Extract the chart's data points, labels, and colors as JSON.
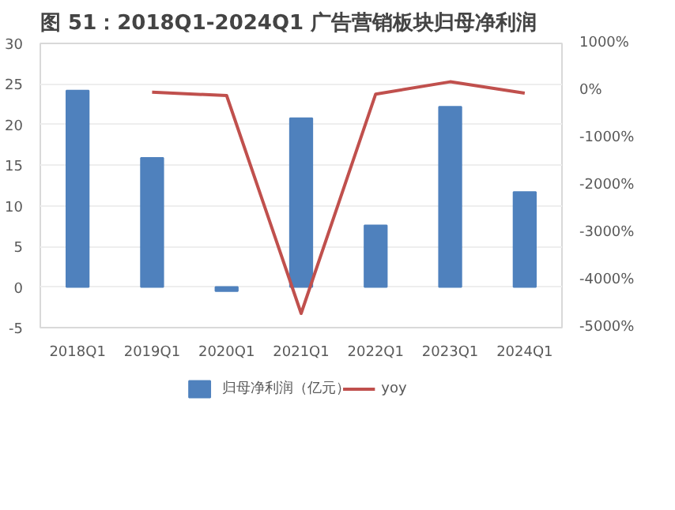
{
  "chart_data": {
    "type": "bar",
    "title": "图 51：2018Q1-2024Q1 广告营销板块归母净利润",
    "categories": [
      "2018Q1",
      "2019Q1",
      "2020Q1",
      "2021Q1",
      "2022Q1",
      "2023Q1",
      "2024Q1"
    ],
    "series": [
      {
        "name": "归母净利润（亿元）",
        "color": "#4f81bd",
        "values": [
          24.2,
          15.9,
          -0.5,
          20.8,
          7.6,
          22.2,
          11.7
        ]
      },
      {
        "name": "yoy",
        "type": "line",
        "axis": "y2",
        "color": "#c0504d",
        "values": [
          null,
          -30,
          -100,
          -4700,
          -70,
          190,
          -50
        ]
      }
    ],
    "ylim": [
      -5,
      30
    ],
    "yticks": [
      -5,
      0,
      5,
      10,
      15,
      20,
      25,
      30
    ],
    "y2lim": [
      -5000,
      1000
    ],
    "y2ticks": [
      {
        "value": -5000,
        "label": "-5000%"
      },
      {
        "value": -4000,
        "label": "-4000%"
      },
      {
        "value": -3000,
        "label": "-3000%"
      },
      {
        "value": -2000,
        "label": "-2000%"
      },
      {
        "value": -1000,
        "label": "-1000%"
      },
      {
        "value": 0,
        "label": "0%"
      },
      {
        "value": 1000,
        "label": "1000%"
      }
    ],
    "grid": "y",
    "legend": "bottom"
  }
}
